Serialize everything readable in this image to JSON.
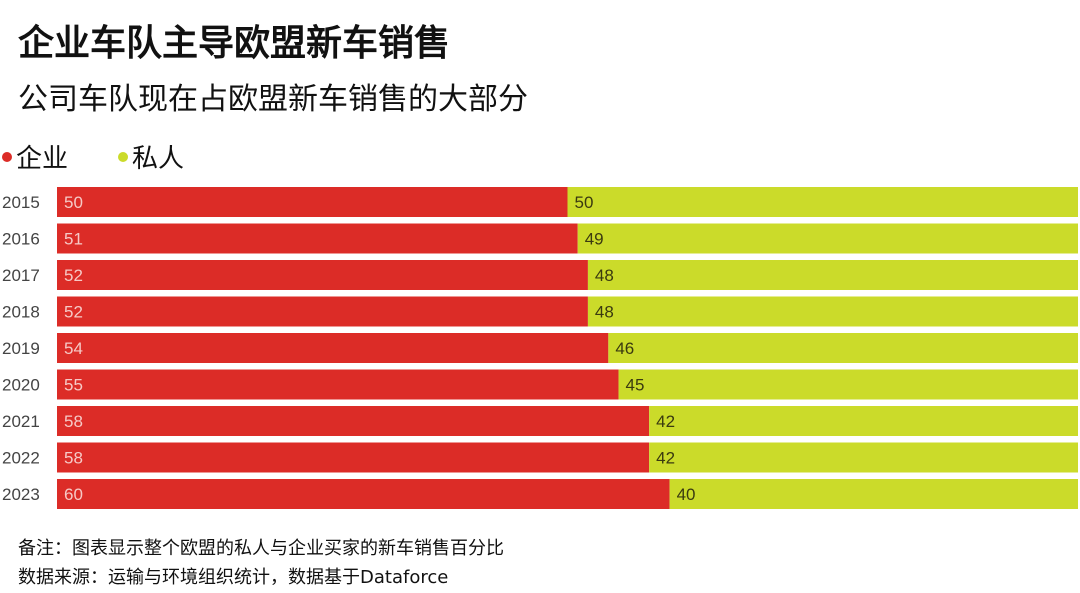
{
  "title": "企业车队主导欧盟新车销售",
  "subtitle": "公司车队现在占欧盟新车销售的大部分",
  "notes": [
    "备注：图表显示整个欧盟的私人与企业买家的新车销售百分比",
    "数据来源：运输与环境组织统计，数据基于Dataforce"
  ],
  "chart_data": {
    "type": "bar",
    "orientation": "horizontal",
    "stacked": true,
    "categories": [
      "2015",
      "2016",
      "2017",
      "2018",
      "2019",
      "2020",
      "2021",
      "2022",
      "2023"
    ],
    "series": [
      {
        "name": "企业",
        "color": "#dc2c27",
        "values": [
          50,
          51,
          52,
          52,
          54,
          55,
          58,
          58,
          60
        ]
      },
      {
        "name": "私人",
        "color": "#cbdb2a",
        "values": [
          50,
          49,
          48,
          48,
          46,
          45,
          42,
          42,
          40
        ]
      }
    ],
    "xlim": [
      0,
      100
    ],
    "grid": false,
    "legend": "top-left"
  }
}
